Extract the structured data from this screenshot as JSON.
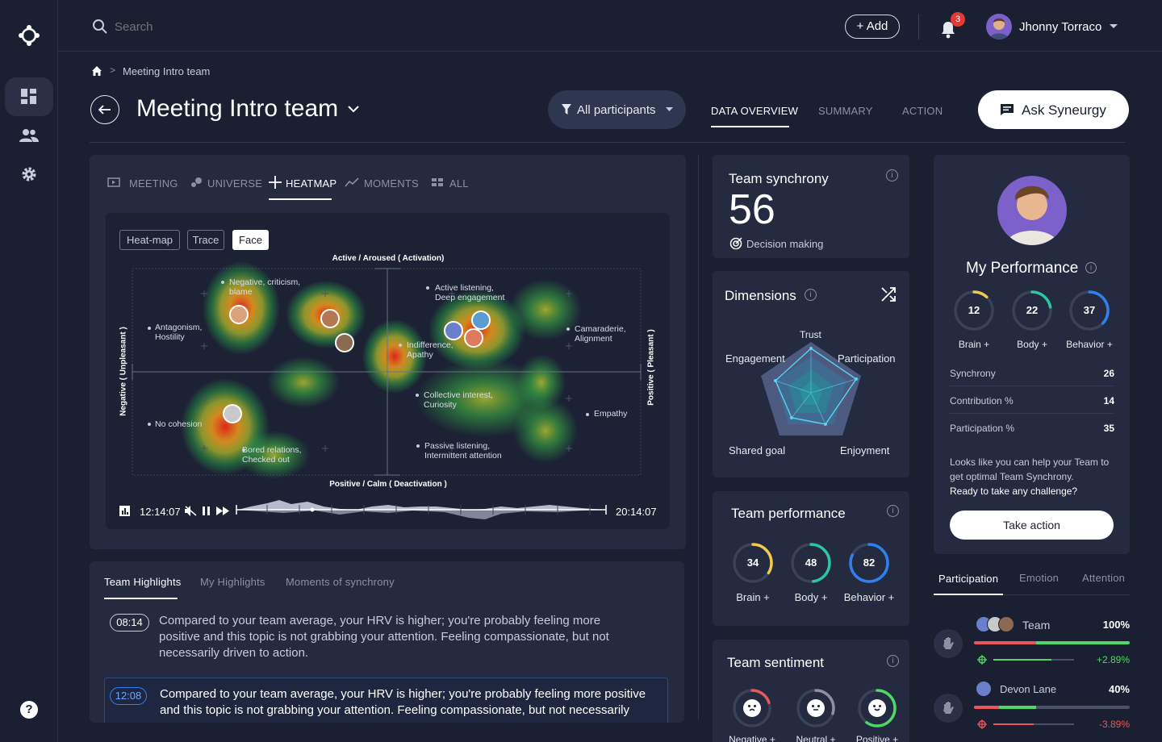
{
  "topbar": {
    "search_placeholder": "Search",
    "add_label": "+ Add",
    "notification_count": "3",
    "user_name": "Jhonny Torraco"
  },
  "breadcrumb": {
    "current": "Meeting Intro team"
  },
  "header": {
    "title": "Meeting Intro team",
    "filter_label": "All participants",
    "tabs": [
      {
        "label": "DATA OVERVIEW"
      },
      {
        "label": "SUMMARY"
      },
      {
        "label": "ACTION"
      }
    ],
    "ask_label": "Ask Syneurgy"
  },
  "viz_tabs": [
    {
      "label": "MEETING"
    },
    {
      "label": "UNIVERSE"
    },
    {
      "label": "HEATMAP"
    },
    {
      "label": "MOMENTS"
    },
    {
      "label": "ALL"
    }
  ],
  "heatmap": {
    "modes": [
      "Heat-map",
      "Trace",
      "Face"
    ],
    "axis_top": "Active / Aroused ( Activation)",
    "axis_bottom": "Positive / Calm ( Deactivation )",
    "axis_left": "Negative ( Unpleasant )",
    "axis_right": "Positive ( Pleasant )",
    "labels": [
      {
        "l1": "Negative, criticism,",
        "l2": "blame"
      },
      {
        "l1": "Active listening,",
        "l2": "Deep engagement"
      },
      {
        "l1": "Antagonism,",
        "l2": "Hostility"
      },
      {
        "l1": "Camaraderie,",
        "l2": "Alignment"
      },
      {
        "l1": "Indifference,",
        "l2": "Apathy"
      },
      {
        "l1": "Collective interest,",
        "l2": "Curiosity"
      },
      {
        "l1": "Empathy",
        "l2": ""
      },
      {
        "l1": "No cohesion",
        "l2": ""
      },
      {
        "l1": "Bored relations,",
        "l2": "Checked out"
      },
      {
        "l1": "Passive listening,",
        "l2": "Intermittent attention"
      }
    ],
    "time_start": "12:14:07",
    "time_end": "20:14:07"
  },
  "highlights": {
    "tabs": [
      {
        "label": "Team Highlights"
      },
      {
        "label": "My Highlights"
      },
      {
        "label": "Moments of synchrony"
      }
    ],
    "items": [
      {
        "time": "08:14",
        "text": "Compared to your team average, your HRV is higher; you're probably feeling more positive and this topic is not grabbing your attention. Feeling compassionate, but not necessarily driven to action."
      },
      {
        "time": "12:08",
        "text": "Compared to your team average, your HRV is higher; you're probably feeling more positive and this topic is not grabbing your attention. Feeling compassionate, but not necessarily"
      }
    ]
  },
  "synchrony": {
    "title": "Team synchrony",
    "value": "56",
    "subtitle": "Decision making"
  },
  "dimensions": {
    "title": "Dimensions",
    "labels": [
      "Trust",
      "Participation",
      "Enjoyment",
      "Shared goal",
      "Engagement"
    ]
  },
  "team_performance": {
    "title": "Team performance",
    "rings": [
      {
        "value": "34",
        "label": "Brain +",
        "pct": 0.34,
        "color": "#f2c94c"
      },
      {
        "value": "48",
        "label": "Body +",
        "pct": 0.48,
        "color": "#2ec4a6"
      },
      {
        "value": "82",
        "label": "Behavior +",
        "pct": 0.82,
        "color": "#2f80ed"
      }
    ]
  },
  "sentiment": {
    "title": "Team sentiment",
    "items": [
      {
        "label": "Negative +",
        "pct": 0.2,
        "color": "#eb5757"
      },
      {
        "label": "Neutral +",
        "pct": 0.3,
        "color": "#8a91a5"
      },
      {
        "label": "Positive +",
        "pct": 0.6,
        "color": "#4cd964"
      }
    ]
  },
  "my_performance": {
    "title": "My Performance",
    "rings": [
      {
        "value": "12",
        "label": "Brain +",
        "pct": 0.12,
        "color": "#f2c94c"
      },
      {
        "value": "22",
        "label": "Body +",
        "pct": 0.22,
        "color": "#2ec4a6"
      },
      {
        "value": "37",
        "label": "Behavior +",
        "pct": 0.37,
        "color": "#2f80ed"
      }
    ],
    "stats": [
      {
        "label": "Synchrony",
        "value": "26"
      },
      {
        "label": "Contribution %",
        "value": "14"
      },
      {
        "label": "Participation %",
        "value": "35"
      }
    ],
    "message": "Looks like you can help your Team to get optimal Team Synchrony.",
    "message_bold": "Ready to take any challenge?",
    "action_label": "Take action"
  },
  "participation": {
    "tabs": [
      {
        "label": "Participation"
      },
      {
        "label": "Emotion"
      },
      {
        "label": "Attention"
      }
    ],
    "rows": [
      {
        "name": "Team",
        "pct_label": "100%",
        "fill": 1.0,
        "delta": "+2.89%",
        "delta_color": "#4cd964",
        "sub": 0.72
      },
      {
        "name": "Devon Lane",
        "pct_label": "40%",
        "fill": 0.4,
        "delta": "-3.89%",
        "delta_color": "#eb5757",
        "sub": 0.5
      }
    ]
  }
}
